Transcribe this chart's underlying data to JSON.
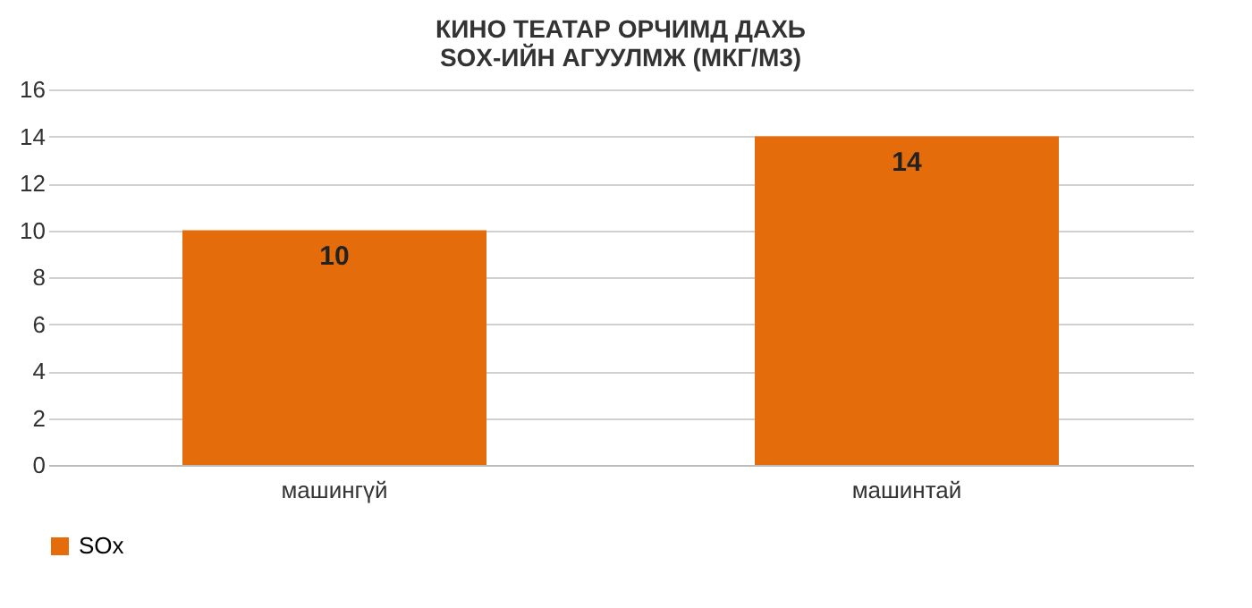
{
  "chart_data": {
    "type": "bar",
    "title": "КИНО ТЕАТАР ОРЧИМД ДАХЬ\nSOX-ИЙН АГУУЛМЖ (МКГ/М3)",
    "categories": [
      "машингүй",
      "машинтай"
    ],
    "series": [
      {
        "name": "SOx",
        "color": "#e46c0a",
        "values": [
          10,
          14
        ]
      }
    ],
    "ylim": [
      0,
      16
    ],
    "yticks": [
      0,
      2,
      4,
      6,
      8,
      10,
      12,
      14,
      16
    ],
    "grid": "y",
    "legend": "bottom",
    "data_labels": true
  }
}
